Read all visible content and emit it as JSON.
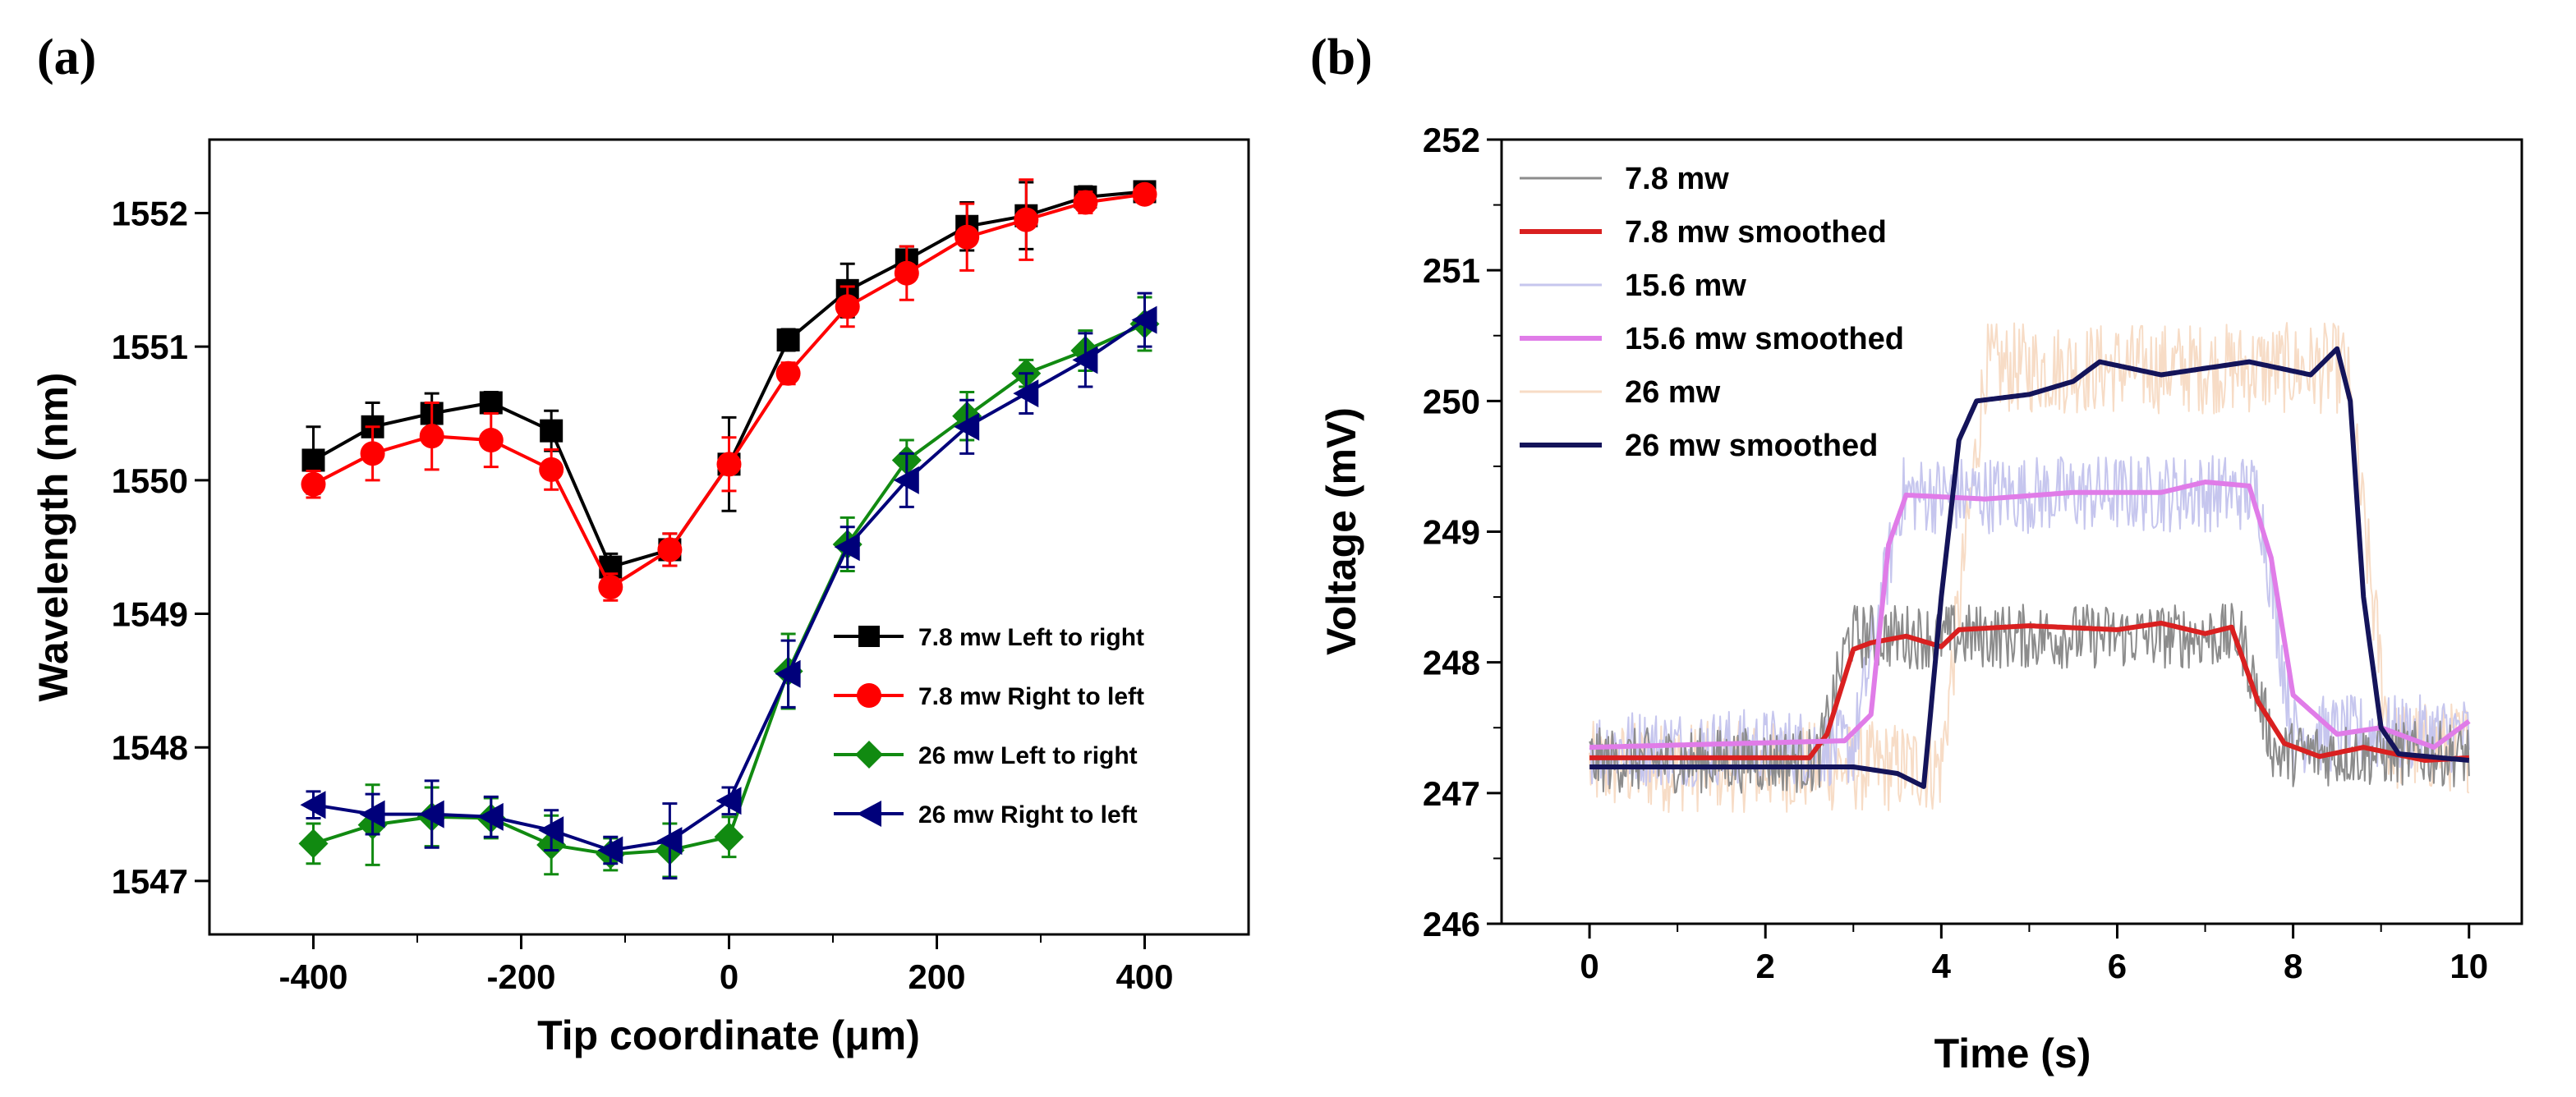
{
  "chart_data": [
    {
      "panel": "(a)",
      "type": "line",
      "xlabel": "Tip coordinate (μm)",
      "ylabel": "Wavelength (nm)",
      "xlim": [
        -500,
        500
      ],
      "ylim": [
        1546.6,
        1552.55
      ],
      "xticks": [
        -400,
        -200,
        0,
        200,
        400
      ],
      "yticks": [
        1547,
        1548,
        1549,
        1550,
        1551,
        1552
      ],
      "x": [
        -400,
        -343,
        -286,
        -229,
        -171,
        -114,
        -57,
        0,
        57,
        114,
        171,
        229,
        286,
        343,
        400
      ],
      "series": [
        {
          "name": "7.8 mw Left to right",
          "color": "#000000",
          "marker": "square",
          "values": [
            1550.15,
            1550.4,
            1550.5,
            1550.58,
            1550.37,
            1549.35,
            1549.48,
            1550.12,
            1551.05,
            1551.42,
            1551.65,
            1551.9,
            1551.98,
            1552.12,
            1552.16
          ],
          "errors": [
            0.25,
            0.18,
            0.15,
            0.08,
            0.15,
            0.1,
            0.12,
            0.35,
            0.08,
            0.2,
            0.1,
            0.18,
            0.25,
            0.08,
            0.05
          ]
        },
        {
          "name": "7.8 mw Right to left",
          "color": "#ff0000",
          "marker": "circle",
          "values": [
            1549.97,
            1550.2,
            1550.33,
            1550.3,
            1550.08,
            1549.2,
            1549.48,
            1550.12,
            1550.8,
            1551.3,
            1551.55,
            1551.82,
            1551.95,
            1552.08,
            1552.14
          ],
          "errors": [
            0.1,
            0.2,
            0.25,
            0.2,
            0.15,
            0.1,
            0.12,
            0.2,
            0.08,
            0.15,
            0.2,
            0.25,
            0.3,
            0.08,
            0.05
          ]
        },
        {
          "name": "26 mw Left to right",
          "color": "#118a11",
          "marker": "diamond",
          "values": [
            1547.28,
            1547.42,
            1547.48,
            1547.47,
            1547.27,
            1547.2,
            1547.23,
            1547.33,
            1548.57,
            1549.52,
            1550.15,
            1550.48,
            1550.8,
            1550.97,
            1551.17
          ],
          "errors": [
            0.15,
            0.3,
            0.22,
            0.15,
            0.22,
            0.12,
            0.2,
            0.15,
            0.28,
            0.2,
            0.15,
            0.18,
            0.1,
            0.15,
            0.2
          ]
        },
        {
          "name": "26 mw Right to left",
          "color": "#00007a",
          "marker": "triangle-left",
          "values": [
            1547.57,
            1547.5,
            1547.5,
            1547.48,
            1547.38,
            1547.23,
            1547.3,
            1547.6,
            1548.55,
            1549.5,
            1550.0,
            1550.4,
            1550.65,
            1550.9,
            1551.2
          ],
          "errors": [
            0.1,
            0.15,
            0.25,
            0.15,
            0.15,
            0.1,
            0.28,
            0.1,
            0.25,
            0.15,
            0.2,
            0.2,
            0.15,
            0.2,
            0.2
          ]
        }
      ],
      "legend": "center-right"
    },
    {
      "panel": "(b)",
      "type": "line",
      "xlabel": "Time (s)",
      "ylabel": "Voltage (mV)",
      "xlim": [
        -1,
        10.6
      ],
      "ylim": [
        246,
        252
      ],
      "xticks": [
        0,
        2,
        4,
        6,
        8,
        10
      ],
      "yticks": [
        246,
        247,
        248,
        249,
        250,
        251,
        252
      ],
      "series": [
        {
          "name": "7.8 mw",
          "color": "#8c8c8c",
          "kind": "raw",
          "x": [
            0,
            2.6,
            2.95,
            7.4,
            7.8,
            10
          ],
          "values": [
            247.25,
            247.25,
            248.2,
            248.2,
            247.3,
            247.3
          ],
          "noise": 0.25
        },
        {
          "name": "7.8 mw smoothed",
          "color": "#d92020",
          "kind": "smoothed",
          "x": [
            0,
            2.5,
            2.7,
            3.0,
            3.2,
            3.6,
            4.0,
            4.2,
            5.0,
            6.0,
            6.5,
            7.0,
            7.3,
            7.6,
            7.9,
            8.3,
            8.8,
            9.5,
            10
          ],
          "values": [
            247.27,
            247.27,
            247.45,
            248.1,
            248.15,
            248.2,
            248.12,
            248.25,
            248.28,
            248.25,
            248.3,
            248.22,
            248.27,
            247.7,
            247.38,
            247.28,
            247.35,
            247.25,
            247.27
          ]
        },
        {
          "name": "15.6 mw",
          "color": "#c6c6ee",
          "kind": "raw",
          "x": [
            0,
            3.0,
            3.55,
            7.6,
            8.0,
            10
          ],
          "values": [
            247.35,
            247.35,
            249.28,
            249.3,
            247.45,
            247.45
          ],
          "noise": 0.3
        },
        {
          "name": "15.6 mw smoothed",
          "color": "#e07ce8",
          "kind": "smoothed",
          "x": [
            0,
            2.9,
            3.2,
            3.4,
            3.6,
            4.5,
            5.5,
            6.5,
            7.0,
            7.5,
            7.75,
            8.0,
            8.5,
            9.0,
            9.6,
            10
          ],
          "values": [
            247.35,
            247.4,
            247.6,
            248.9,
            249.28,
            249.25,
            249.3,
            249.3,
            249.38,
            249.35,
            248.8,
            247.75,
            247.45,
            247.5,
            247.35,
            247.55
          ]
        },
        {
          "name": "26 mw",
          "color": "#f7dcc6",
          "kind": "raw",
          "x": [
            0,
            4.0,
            4.5,
            8.6,
            9.1,
            10
          ],
          "values": [
            247.2,
            247.2,
            250.25,
            250.25,
            247.35,
            247.35
          ],
          "noise": 0.35
        },
        {
          "name": "26 mw smoothed",
          "color": "#14145a",
          "kind": "smoothed",
          "x": [
            0,
            1.0,
            2.0,
            3.0,
            3.5,
            3.8,
            4.0,
            4.2,
            4.4,
            5.0,
            5.5,
            5.8,
            6.5,
            7.5,
            8.2,
            8.5,
            8.65,
            8.8,
            9.0,
            9.2,
            10
          ],
          "values": [
            247.2,
            247.2,
            247.2,
            247.2,
            247.15,
            247.05,
            248.5,
            249.7,
            250.0,
            250.05,
            250.15,
            250.3,
            250.2,
            250.3,
            250.2,
            250.4,
            250.0,
            248.5,
            247.5,
            247.3,
            247.25
          ]
        }
      ],
      "legend": "top-left"
    }
  ]
}
